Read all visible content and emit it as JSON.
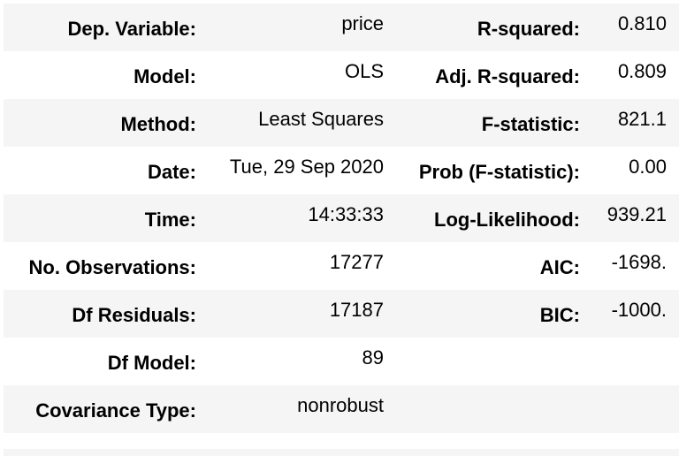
{
  "rows": [
    {
      "label1": "Dep. Variable:",
      "value1": "price",
      "label2": "R-squared:",
      "value2": "0.810"
    },
    {
      "label1": "Model:",
      "value1": "OLS",
      "label2": "Adj. R-squared:",
      "value2": "0.809"
    },
    {
      "label1": "Method:",
      "value1": "Least Squares",
      "label2": "F-statistic:",
      "value2": "821.1"
    },
    {
      "label1": "Date:",
      "value1": "Tue, 29 Sep 2020",
      "label2": "Prob (F-statistic):",
      "value2": "0.00"
    },
    {
      "label1": "Time:",
      "value1": "14:33:33",
      "label2": "Log-Likelihood:",
      "value2": "939.21"
    },
    {
      "label1": "No. Observations:",
      "value1": "17277",
      "label2": "AIC:",
      "value2": "-1698."
    },
    {
      "label1": "Df Residuals:",
      "value1": "17187",
      "label2": "BIC:",
      "value2": "-1000."
    },
    {
      "label1": "Df Model:",
      "value1": "89",
      "label2": "",
      "value2": ""
    },
    {
      "label1": "Covariance Type:",
      "value1": "nonrobust",
      "label2": "",
      "value2": ""
    }
  ]
}
